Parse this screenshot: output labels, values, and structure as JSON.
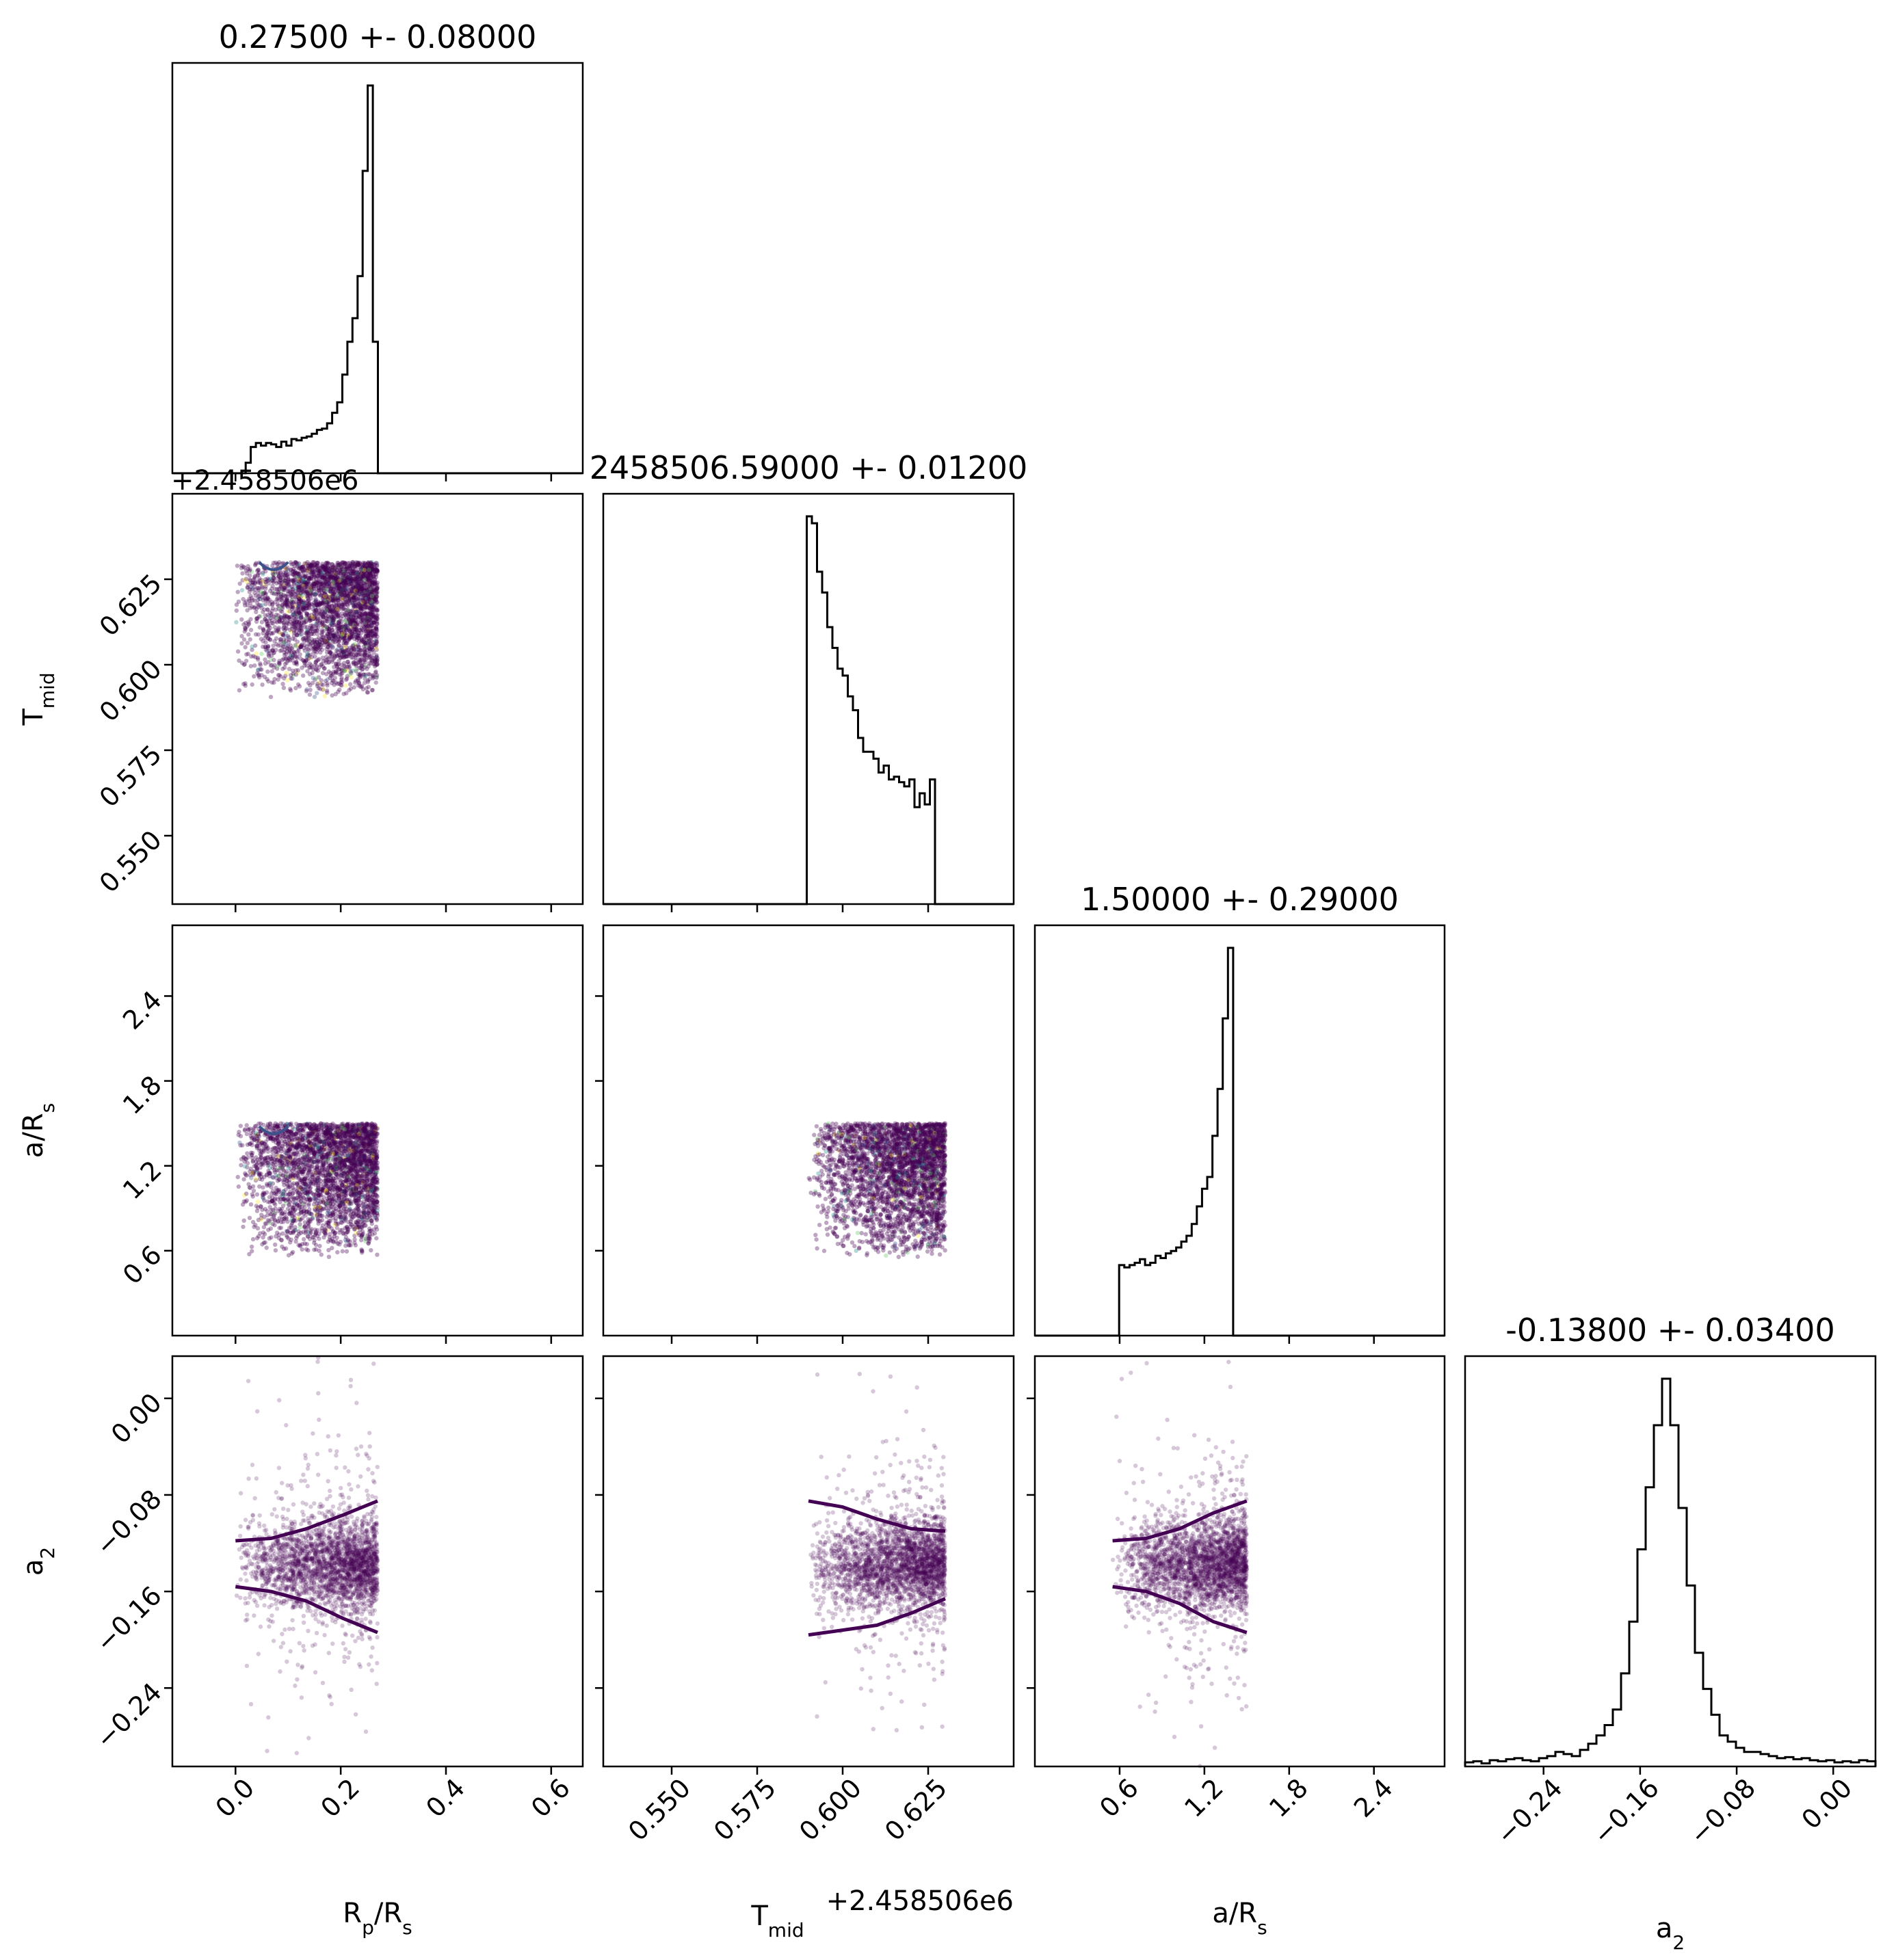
{
  "chart_data": {
    "type": "corner",
    "parameters": [
      {
        "key": "rp",
        "label_main": "R",
        "label_sub1": "p",
        "label_mid": "/R",
        "label_sub2": "s",
        "title": "0.27500 +- 0.08000",
        "range": [
          -0.12,
          0.66
        ],
        "ticks": [
          0.0,
          0.2,
          0.4,
          0.6
        ],
        "tick_labels": [
          "0.0",
          "0.2",
          "0.4",
          "0.6"
        ],
        "samples": {
          "lo": 0.0,
          "hi": 0.27,
          "mode": 0.26
        }
      },
      {
        "key": "tmid",
        "label_main": "T",
        "label_sub1": "mid",
        "label_mid": "",
        "label_sub2": "",
        "title": "2458506.59000 +- 0.01200",
        "axis_offset": "+2.458506e6",
        "range": [
          0.53,
          0.65
        ],
        "ticks": [
          0.55,
          0.575,
          0.6,
          0.625
        ],
        "tick_labels": [
          "0.550",
          "0.575",
          "0.600",
          "0.625"
        ],
        "samples": {
          "lo": 0.59,
          "hi": 0.63,
          "mode": 0.592
        }
      },
      {
        "key": "ars",
        "label_main": "a/R",
        "label_sub1": "s",
        "label_mid": "",
        "label_sub2": "",
        "title": "1.50000 +- 0.29000",
        "range": [
          0.0,
          2.9
        ],
        "ticks": [
          0.6,
          1.2,
          1.8,
          2.4
        ],
        "tick_labels": [
          "0.6",
          "1.2",
          "1.8",
          "2.4"
        ],
        "samples": {
          "lo": 0.55,
          "hi": 1.5,
          "mode": 1.47
        }
      },
      {
        "key": "a2",
        "label_main": "a",
        "label_sub1": "2",
        "label_mid": "",
        "label_sub2": "",
        "title": "-0.13800 +- 0.03400",
        "range": [
          -0.305,
          0.035
        ],
        "ticks": [
          -0.24,
          -0.16,
          -0.08,
          0.0
        ],
        "tick_labels": [
          "−0.24",
          "−0.16",
          "−0.08",
          "0.00"
        ],
        "samples": {
          "center": -0.138,
          "sigma": 0.018
        }
      }
    ],
    "histograms": {
      "rp": {
        "edges_range": [
          0.0,
          0.29
        ],
        "counts": [
          0,
          0,
          8,
          20,
          23,
          21,
          23,
          22,
          20,
          24,
          21,
          26,
          25,
          27,
          28,
          30,
          33,
          34,
          38,
          46,
          54,
          75,
          100,
          118,
          150,
          230,
          295,
          100,
          0,
          0
        ]
      },
      "tmid": {
        "edges_range": [
          0.588,
          0.633
        ],
        "counts": [
          0,
          280,
          275,
          240,
          225,
          200,
          185,
          170,
          165,
          150,
          140,
          120,
          110,
          110,
          105,
          95,
          100,
          90,
          92,
          88,
          85,
          90,
          70,
          80,
          72,
          90,
          0,
          0,
          0,
          0
        ]
      },
      "ars": {
        "edges_range": [
          0.45,
          1.55
        ],
        "counts": [
          0,
          0,
          0,
          0,
          60,
          58,
          60,
          62,
          65,
          60,
          62,
          68,
          66,
          70,
          72,
          75,
          80,
          85,
          95,
          110,
          125,
          135,
          170,
          210,
          270,
          330,
          0,
          0,
          0,
          0
        ]
      },
      "a2": {
        "edges_range": [
          -0.305,
          0.035
        ],
        "counts": [
          4,
          5,
          3,
          6,
          5,
          7,
          8,
          6,
          5,
          8,
          10,
          14,
          12,
          10,
          16,
          22,
          30,
          40,
          55,
          90,
          140,
          210,
          270,
          330,
          375,
          330,
          250,
          175,
          110,
          75,
          50,
          30,
          24,
          18,
          14,
          14,
          12,
          10,
          8,
          9,
          7,
          8,
          6,
          5,
          6,
          4,
          5,
          4,
          6,
          5
        ]
      }
    },
    "contour_band": {
      "a2_vs_rp": {
        "upper": [
          -0.118,
          -0.116,
          -0.108,
          -0.097,
          -0.085
        ],
        "lower": [
          -0.156,
          -0.16,
          -0.168,
          -0.182,
          -0.194
        ]
      },
      "a2_vs_tmid": {
        "upper": [
          -0.085,
          -0.09,
          -0.1,
          -0.108,
          -0.11
        ],
        "lower": [
          -0.196,
          -0.192,
          -0.188,
          -0.178,
          -0.166
        ]
      },
      "a2_vs_ars": {
        "upper": [
          -0.118,
          -0.116,
          -0.108,
          -0.095,
          -0.085
        ],
        "lower": [
          -0.156,
          -0.16,
          -0.17,
          -0.185,
          -0.194
        ]
      }
    },
    "grid": false,
    "legend": "none"
  },
  "colors": {
    "scatter": "#440154",
    "scatter_accents": [
      "#3b528b",
      "#21918c",
      "#5ec962",
      "#fde725"
    ],
    "axes": "#000000",
    "hist": "#000000",
    "contour": "#3b528b"
  }
}
